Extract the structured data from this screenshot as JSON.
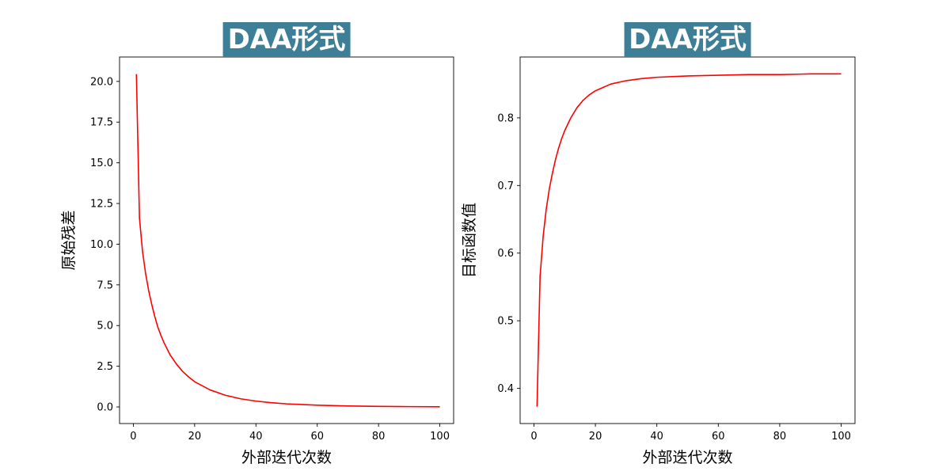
{
  "colors": {
    "line": "#ff0000",
    "title_bg": "#3d7f96",
    "title_text": "#ffffff",
    "axis": "#000000"
  },
  "chart_data": [
    {
      "type": "line",
      "title": "DAA形式",
      "xlabel": "外部迭代次数",
      "ylabel": "原始残差",
      "xlim": [
        -4.5,
        104.5
      ],
      "ylim": [
        -1.02,
        21.5
      ],
      "xticks": [
        0,
        20,
        40,
        60,
        80,
        100
      ],
      "yticks": [
        0.0,
        2.5,
        5.0,
        7.5,
        10.0,
        12.5,
        15.0,
        17.5,
        20.0
      ],
      "xtick_labels": [
        "0",
        "20",
        "40",
        "60",
        "80",
        "100"
      ],
      "ytick_labels": [
        "0.0",
        "2.5",
        "5.0",
        "7.5",
        "10.0",
        "12.5",
        "15.0",
        "17.5",
        "20.0"
      ],
      "grid": false,
      "series": [
        {
          "x": [
            1,
            2,
            3,
            4,
            5,
            6,
            7,
            8,
            9,
            10,
            12,
            14,
            16,
            18,
            20,
            25,
            30,
            35,
            40,
            45,
            50,
            60,
            70,
            80,
            90,
            100
          ],
          "y": [
            20.45,
            11.6,
            9.55,
            8.2,
            7.15,
            6.3,
            5.55,
            4.9,
            4.4,
            3.95,
            3.2,
            2.65,
            2.2,
            1.85,
            1.55,
            1.05,
            0.72,
            0.5,
            0.36,
            0.26,
            0.19,
            0.11,
            0.06,
            0.035,
            0.02,
            0.01
          ]
        }
      ]
    },
    {
      "type": "line",
      "title": "DAA形式",
      "xlabel": "外部迭代次数",
      "ylabel": "目标函数值",
      "xlim": [
        -4.5,
        104.5
      ],
      "ylim": [
        0.348,
        0.89
      ],
      "xticks": [
        0,
        20,
        40,
        60,
        80,
        100
      ],
      "yticks": [
        0.4,
        0.5,
        0.6,
        0.7,
        0.8
      ],
      "xtick_labels": [
        "0",
        "20",
        "40",
        "60",
        "80",
        "100"
      ],
      "ytick_labels": [
        "0.4",
        "0.5",
        "0.6",
        "0.7",
        "0.8"
      ],
      "grid": false,
      "series": [
        {
          "x": [
            1,
            2,
            3,
            4,
            5,
            6,
            7,
            8,
            9,
            10,
            12,
            14,
            16,
            18,
            20,
            25,
            30,
            35,
            40,
            50,
            60,
            70,
            80,
            90,
            100
          ],
          "y": [
            0.373,
            0.566,
            0.625,
            0.665,
            0.695,
            0.718,
            0.738,
            0.755,
            0.769,
            0.781,
            0.8,
            0.815,
            0.826,
            0.834,
            0.84,
            0.85,
            0.855,
            0.858,
            0.86,
            0.862,
            0.863,
            0.864,
            0.864,
            0.865,
            0.865
          ]
        }
      ]
    }
  ]
}
